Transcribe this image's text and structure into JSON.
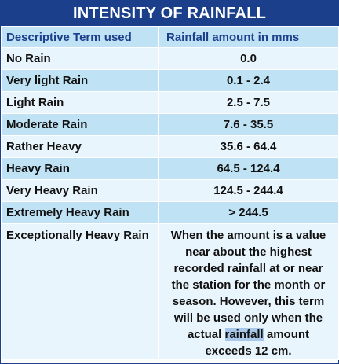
{
  "title": "INTENSITY OF RAINFALL",
  "headers": {
    "term": "Descriptive Term used",
    "amount": "Rainfall amount in mms"
  },
  "rows": [
    {
      "term": "No Rain",
      "amount": "0.0"
    },
    {
      "term": "Very light Rain",
      "amount": "0.1 - 2.4"
    },
    {
      "term": "Light Rain",
      "amount": "2.5 - 7.5"
    },
    {
      "term": "Moderate Rain",
      "amount": "7.6 - 35.5"
    },
    {
      "term": "Rather Heavy",
      "amount": "35.6 - 64.4"
    },
    {
      "term": "Heavy Rain",
      "amount": "64.5 - 124.4"
    },
    {
      "term": "Very Heavy Rain",
      "amount": "124.5 - 244.4"
    },
    {
      "term": "Extremely Heavy Rain",
      "amount": "> 244.5"
    }
  ],
  "last_row": {
    "term": "Exceptionally Heavy Rain",
    "amount_before": "When the amount is a value near about the highest recorded rainfall at or near the station for the month or season. However, this term will be used only when the actual ",
    "amount_highlight": "rainfall",
    "amount_after": " amount exceeds 12 cm."
  },
  "colors": {
    "header_band": "#1c3f8c",
    "row_dark": "#bfe3f5",
    "row_light": "#e9f5fc",
    "selection_highlight": "#a8c8ea"
  }
}
